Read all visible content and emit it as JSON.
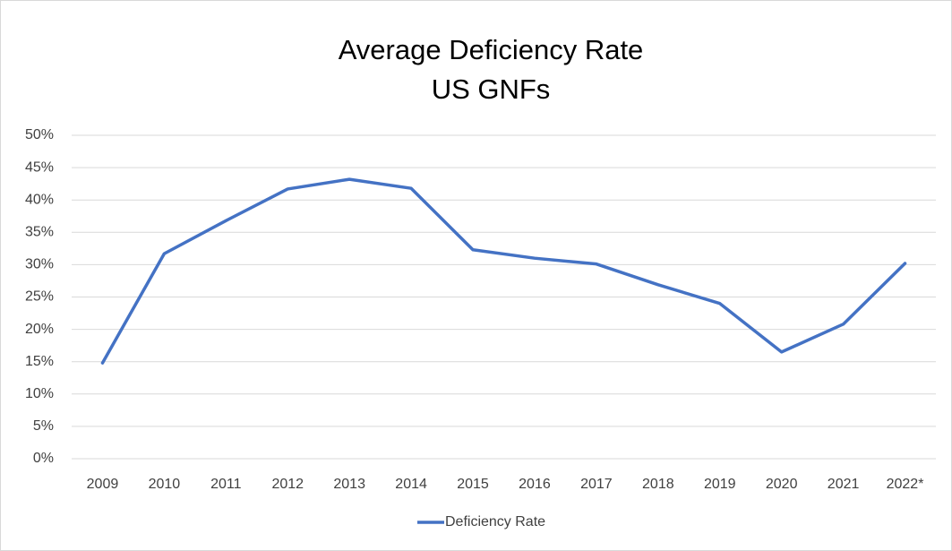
{
  "chart_data": {
    "type": "line",
    "title": "Average Deficiency Rate",
    "subtitle": "US GNFs",
    "categories": [
      "2009",
      "2010",
      "2011",
      "2012",
      "2013",
      "2014",
      "2015",
      "2016",
      "2017",
      "2018",
      "2019",
      "2020",
      "2021",
      "2022*"
    ],
    "series": [
      {
        "name": "Deficiency Rate",
        "color": "#4472c4",
        "values": [
          14.8,
          31.7,
          36.8,
          41.7,
          43.2,
          41.8,
          32.3,
          31.0,
          30.1,
          26.9,
          24.0,
          16.5,
          20.8,
          30.2
        ]
      }
    ],
    "ylim": [
      0,
      50
    ],
    "yticks": [
      {
        "value": 0,
        "label": "0%"
      },
      {
        "value": 5,
        "label": "5%"
      },
      {
        "value": 10,
        "label": "10%"
      },
      {
        "value": 15,
        "label": "15%"
      },
      {
        "value": 20,
        "label": "20%"
      },
      {
        "value": 25,
        "label": "25%"
      },
      {
        "value": 30,
        "label": "30%"
      },
      {
        "value": 35,
        "label": "35%"
      },
      {
        "value": 40,
        "label": "40%"
      },
      {
        "value": 45,
        "label": "45%"
      },
      {
        "value": 50,
        "label": "50%"
      }
    ],
    "grid": true,
    "legend": "bottom"
  }
}
